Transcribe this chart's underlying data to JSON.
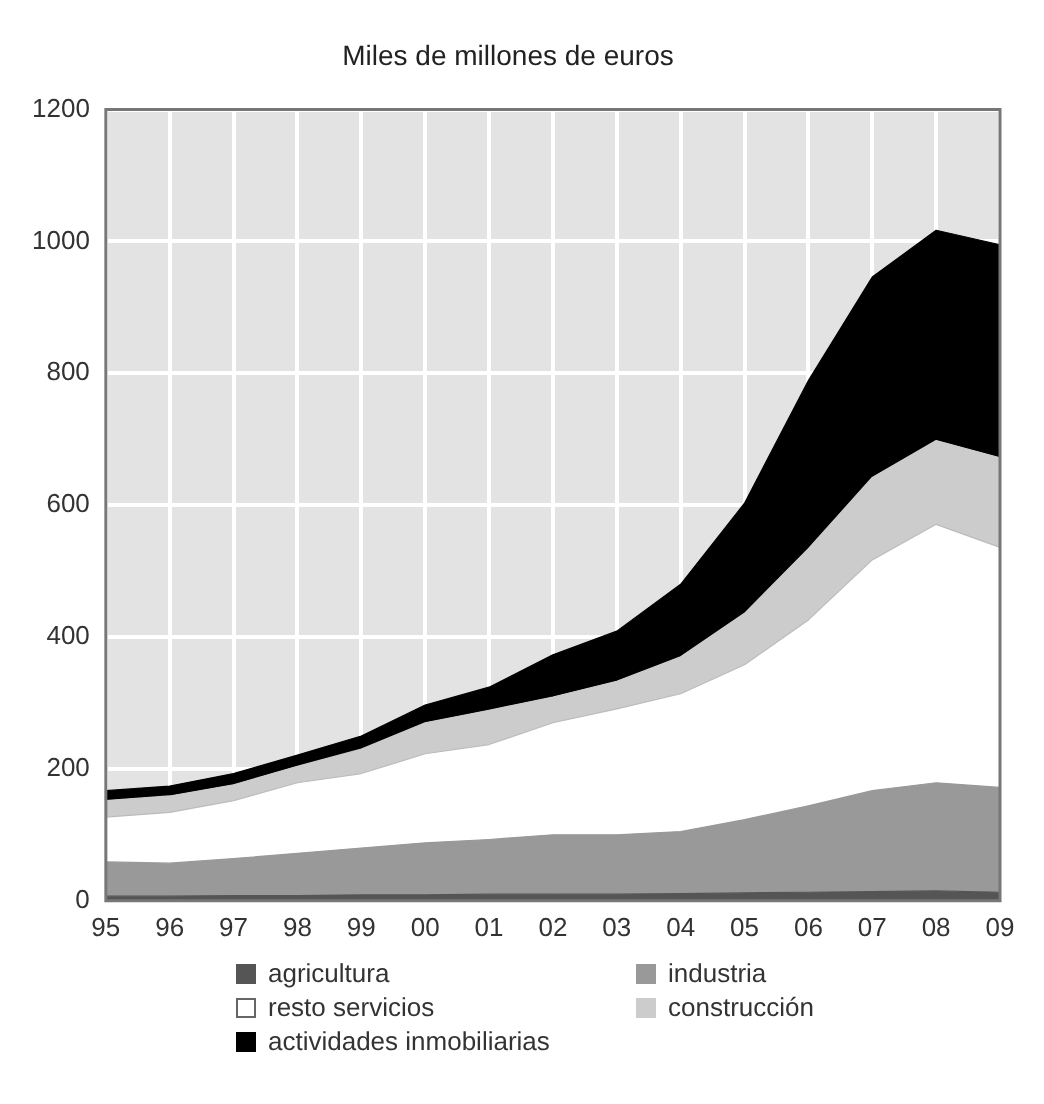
{
  "chart_data": {
    "type": "area",
    "title": "Miles de millones de euros",
    "stacked": true,
    "grid": true,
    "legend": "bottom",
    "categories": [
      "95",
      "96",
      "97",
      "98",
      "99",
      "00",
      "01",
      "02",
      "03",
      "04",
      "05",
      "06",
      "07",
      "08",
      "09"
    ],
    "ylim": [
      0,
      1200
    ],
    "yticks": [
      0,
      200,
      400,
      600,
      800,
      1000,
      1200
    ],
    "series": [
      {
        "name": "agricultura",
        "color": "#555555",
        "values": [
          7,
          7,
          8,
          8,
          9,
          9,
          10,
          10,
          10,
          11,
          12,
          13,
          14,
          15,
          13
        ]
      },
      {
        "name": "industria",
        "color": "#999999",
        "values": [
          52,
          50,
          56,
          64,
          71,
          79,
          83,
          90,
          90,
          94,
          111,
          131,
          153,
          164,
          159
        ]
      },
      {
        "name": "resto servicios",
        "color": "#ffffff",
        "values": [
          68,
          77,
          88,
          107,
          113,
          135,
          144,
          170,
          191,
          209,
          235,
          282,
          350,
          392,
          364
        ]
      },
      {
        "name": "construcción",
        "color": "#cccccc",
        "values": [
          25,
          25,
          24,
          25,
          37,
          47,
          52,
          39,
          42,
          56,
          78,
          108,
          125,
          127,
          136
        ]
      },
      {
        "name": "actividades inmobiliarias",
        "color": "#000000",
        "values": [
          15,
          15,
          17,
          17,
          20,
          27,
          35,
          64,
          76,
          110,
          167,
          255,
          304,
          319,
          323
        ]
      }
    ]
  }
}
